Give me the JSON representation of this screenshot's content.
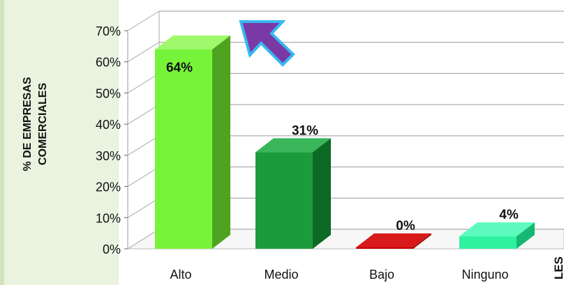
{
  "chart_data": {
    "type": "bar",
    "title": "",
    "ylabel_line1": "% DE EMPRESAS",
    "ylabel_line2": "COMERCIALES",
    "xlabel_fragment": "LES",
    "categories": [
      "Alto",
      "Medio",
      "Bajo",
      "Ninguno"
    ],
    "values": [
      64,
      31,
      0,
      4
    ],
    "value_labels": [
      "64%",
      "31%",
      "0%",
      "4%"
    ],
    "ylim": [
      0,
      70
    ],
    "yticks": [
      "0%",
      "10%",
      "20%",
      "30%",
      "40%",
      "50%",
      "60%",
      "70%"
    ],
    "grid": true,
    "bar_colors": [
      {
        "front": "#77f43a",
        "side": "#4ea420",
        "top": "#9ff96c"
      },
      {
        "front": "#1c9b3c",
        "side": "#0c6a24",
        "top": "#39b65a"
      },
      {
        "front": "#c80000",
        "side": "#8a0000",
        "top": "#d81a1a"
      },
      {
        "front": "#2ef2a0",
        "side": "#15b872",
        "top": "#5cfbbd"
      }
    ],
    "annotation": {
      "type": "arrow",
      "color": "#7a3aa6",
      "outline": "#38b8f0"
    }
  }
}
